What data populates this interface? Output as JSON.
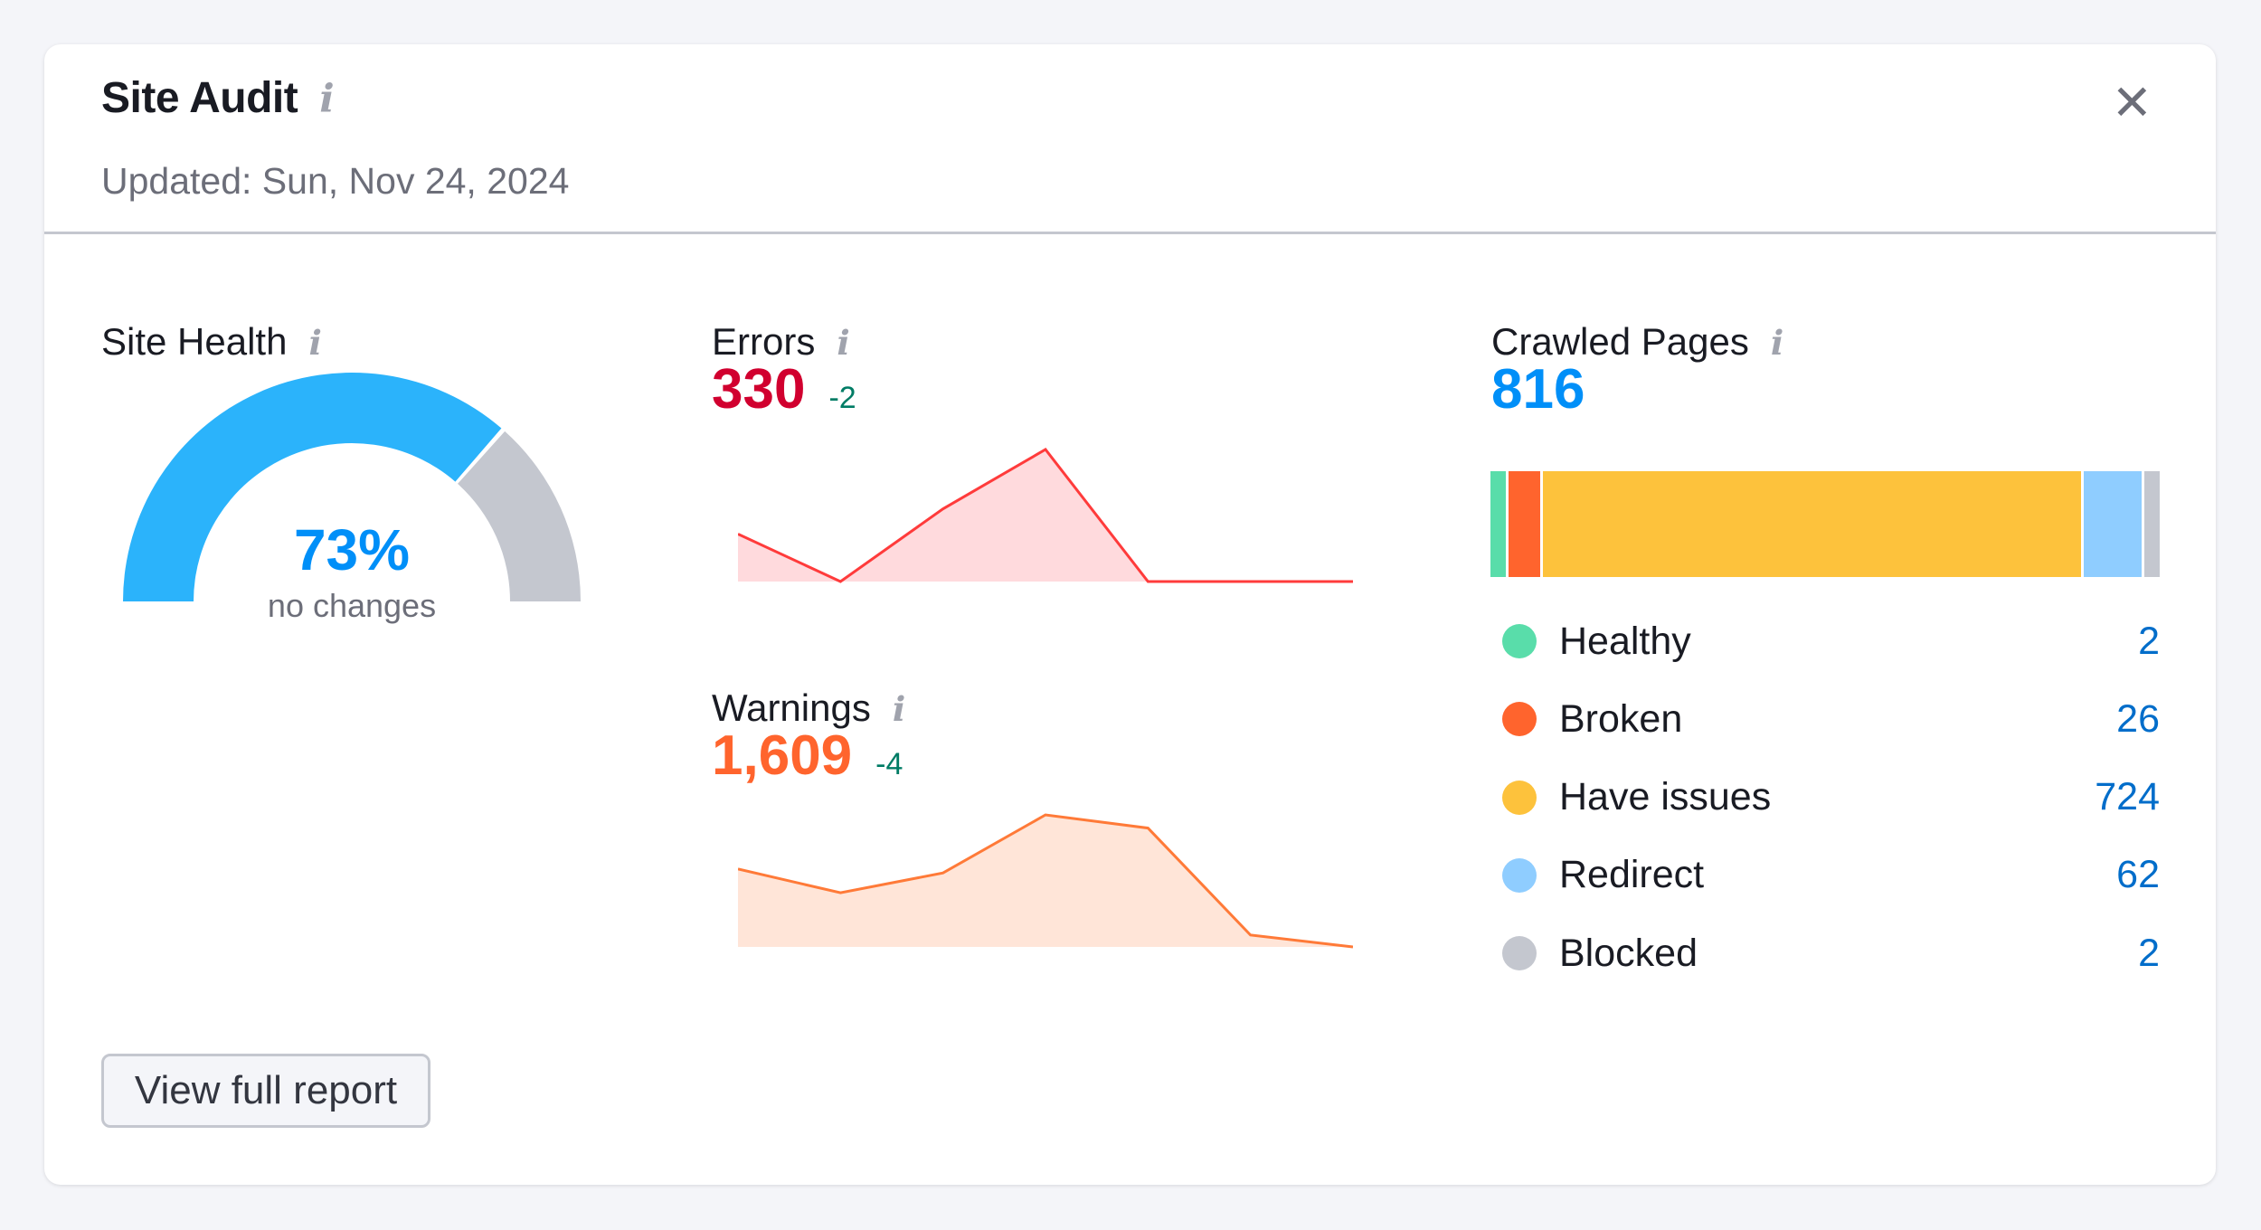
{
  "header": {
    "title": "Site Audit",
    "updated": "Updated: Sun, Nov 24, 2024",
    "close_icon": "close-icon",
    "info_icon": "info-icon"
  },
  "site_health": {
    "label": "Site Health",
    "percent": 73,
    "percent_text": "73%",
    "subtitle": "no changes",
    "colors": {
      "fill": "#2bb3fb",
      "rest": "#c4c7cf",
      "text": "#008ff8"
    }
  },
  "errors": {
    "label": "Errors",
    "value": "330",
    "delta": "-2",
    "color": "#d1002f",
    "line_color": "#ff3b3b",
    "area_color": "#ffdadd",
    "trend": [
      36,
      0,
      55,
      100,
      0,
      0,
      0
    ]
  },
  "warnings": {
    "label": "Warnings",
    "value": "1,609",
    "delta": "-4",
    "color": "#ff642d",
    "line_color": "#ff7a38",
    "area_color": "#ffe5d8",
    "trend": [
      59,
      41,
      56,
      100,
      90,
      9,
      0
    ]
  },
  "crawled": {
    "label": "Crawled Pages",
    "value": "816",
    "color": "#008ff8",
    "items": [
      {
        "label": "Healthy",
        "value": "2",
        "count": 2,
        "color": "#59ddaa"
      },
      {
        "label": "Broken",
        "value": "26",
        "count": 26,
        "color": "#ff642d"
      },
      {
        "label": "Have issues",
        "value": "724",
        "count": 724,
        "color": "#fdc23c"
      },
      {
        "label": "Redirect",
        "value": "62",
        "count": 62,
        "color": "#8fcdff"
      },
      {
        "label": "Blocked",
        "value": "2",
        "count": 2,
        "color": "#c4c7cf"
      }
    ]
  },
  "footer": {
    "button_label": "View full report"
  }
}
